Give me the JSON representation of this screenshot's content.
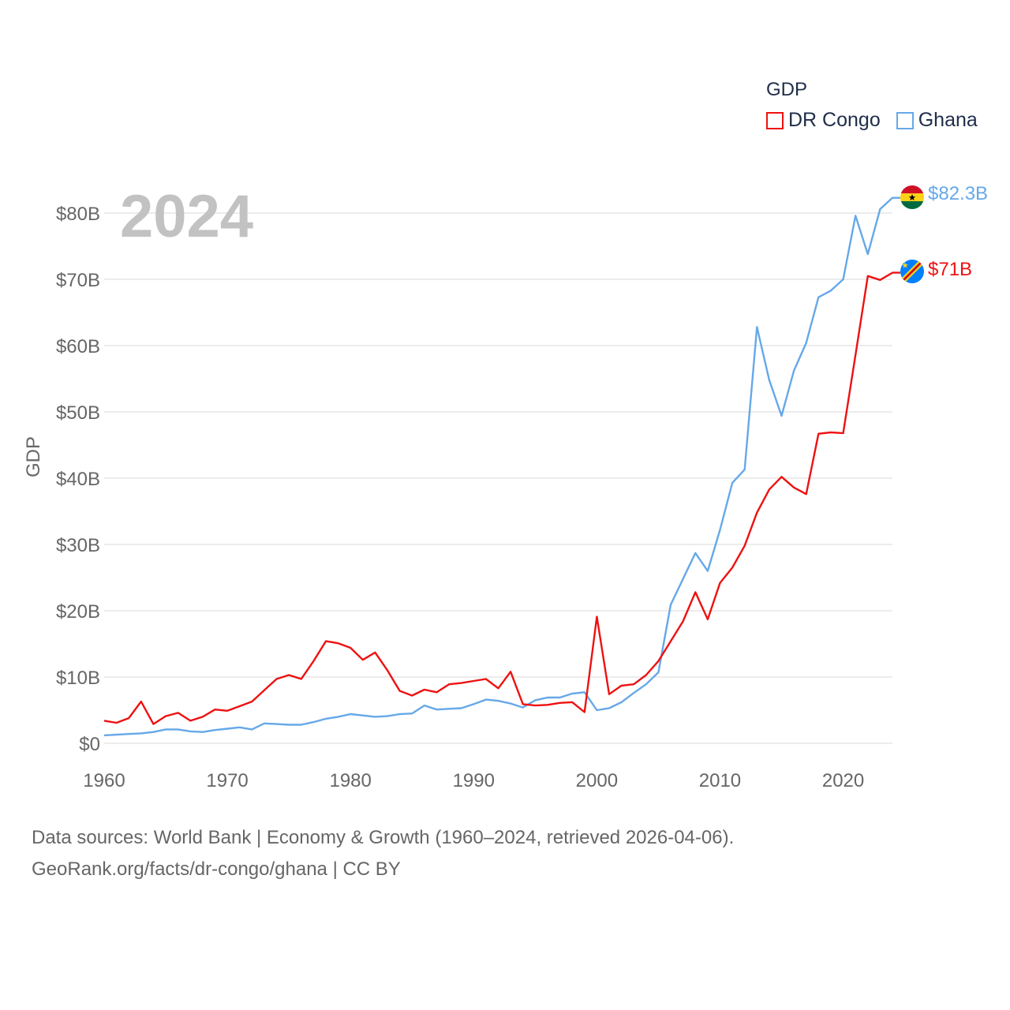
{
  "chart_data": {
    "type": "line",
    "year_label": "2024",
    "ylabel": "GDP",
    "legend_title": "GDP",
    "xlim": [
      1960,
      2024
    ],
    "ylim": [
      0,
      80
    ],
    "x_ticks": [
      "1960",
      "1970",
      "1980",
      "1990",
      "2000",
      "2010",
      "2020"
    ],
    "y_ticks": [
      "$0",
      "$10B",
      "$20B",
      "$30B",
      "$40B",
      "$50B",
      "$60B",
      "$70B",
      "$80B"
    ],
    "years": [
      1960,
      1961,
      1962,
      1963,
      1964,
      1965,
      1966,
      1967,
      1968,
      1969,
      1970,
      1971,
      1972,
      1973,
      1974,
      1975,
      1976,
      1977,
      1978,
      1979,
      1980,
      1981,
      1982,
      1983,
      1984,
      1985,
      1986,
      1987,
      1988,
      1989,
      1990,
      1991,
      1992,
      1993,
      1994,
      1995,
      1996,
      1997,
      1998,
      1999,
      2000,
      2001,
      2002,
      2003,
      2004,
      2005,
      2006,
      2007,
      2008,
      2009,
      2010,
      2011,
      2012,
      2013,
      2014,
      2015,
      2016,
      2017,
      2018,
      2019,
      2020,
      2021,
      2022,
      2023,
      2024
    ],
    "series": [
      {
        "name": "DR Congo",
        "color": "#ee1111",
        "end_label": "$71B",
        "values": [
          3.4,
          3.1,
          3.8,
          6.3,
          2.9,
          4.1,
          4.6,
          3.4,
          4.0,
          5.1,
          4.9,
          5.6,
          6.3,
          8.0,
          9.7,
          10.3,
          9.7,
          12.4,
          15.4,
          15.1,
          14.4,
          12.6,
          13.7,
          11.0,
          7.9,
          7.2,
          8.1,
          7.7,
          8.9,
          9.1,
          9.4,
          9.7,
          8.3,
          10.8,
          5.9,
          5.7,
          5.8,
          6.1,
          6.2,
          4.7,
          19.1,
          7.4,
          8.7,
          8.9,
          10.3,
          12.4,
          15.4,
          18.4,
          22.8,
          18.7,
          24.2,
          26.5,
          29.8,
          34.8,
          38.3,
          40.2,
          38.6,
          37.6,
          46.7,
          46.9,
          46.8,
          58.6,
          70.5,
          69.9,
          71.0
        ]
      },
      {
        "name": "Ghana",
        "color": "#66a8e8",
        "end_label": "$82.3B",
        "values": [
          1.2,
          1.3,
          1.4,
          1.5,
          1.7,
          2.1,
          2.1,
          1.8,
          1.7,
          2.0,
          2.2,
          2.4,
          2.1,
          3.0,
          2.9,
          2.8,
          2.8,
          3.2,
          3.7,
          4.0,
          4.4,
          4.2,
          4.0,
          4.1,
          4.4,
          4.5,
          5.7,
          5.1,
          5.2,
          5.3,
          5.9,
          6.6,
          6.4,
          6.0,
          5.4,
          6.5,
          6.9,
          6.9,
          7.5,
          7.7,
          5.0,
          5.3,
          6.2,
          7.6,
          8.9,
          10.7,
          20.9,
          24.8,
          28.7,
          26.0,
          32.2,
          39.3,
          41.3,
          62.8,
          54.8,
          49.4,
          56.2,
          60.4,
          67.3,
          68.3,
          70.0,
          79.6,
          73.8,
          80.6,
          82.3
        ]
      }
    ]
  },
  "flags": {
    "ghana": [
      "#ce1126",
      "#fcd116",
      "#006b3f"
    ],
    "drcongo": [
      "#007fff",
      "#f7d618",
      "#ce1021"
    ]
  },
  "footer": {
    "line1": "Data sources: World Bank | Economy & Growth (1960–2024, retrieved 2026-04-06).",
    "line2": "GeoRank.org/facts/dr-congo/ghana | CC BY"
  }
}
